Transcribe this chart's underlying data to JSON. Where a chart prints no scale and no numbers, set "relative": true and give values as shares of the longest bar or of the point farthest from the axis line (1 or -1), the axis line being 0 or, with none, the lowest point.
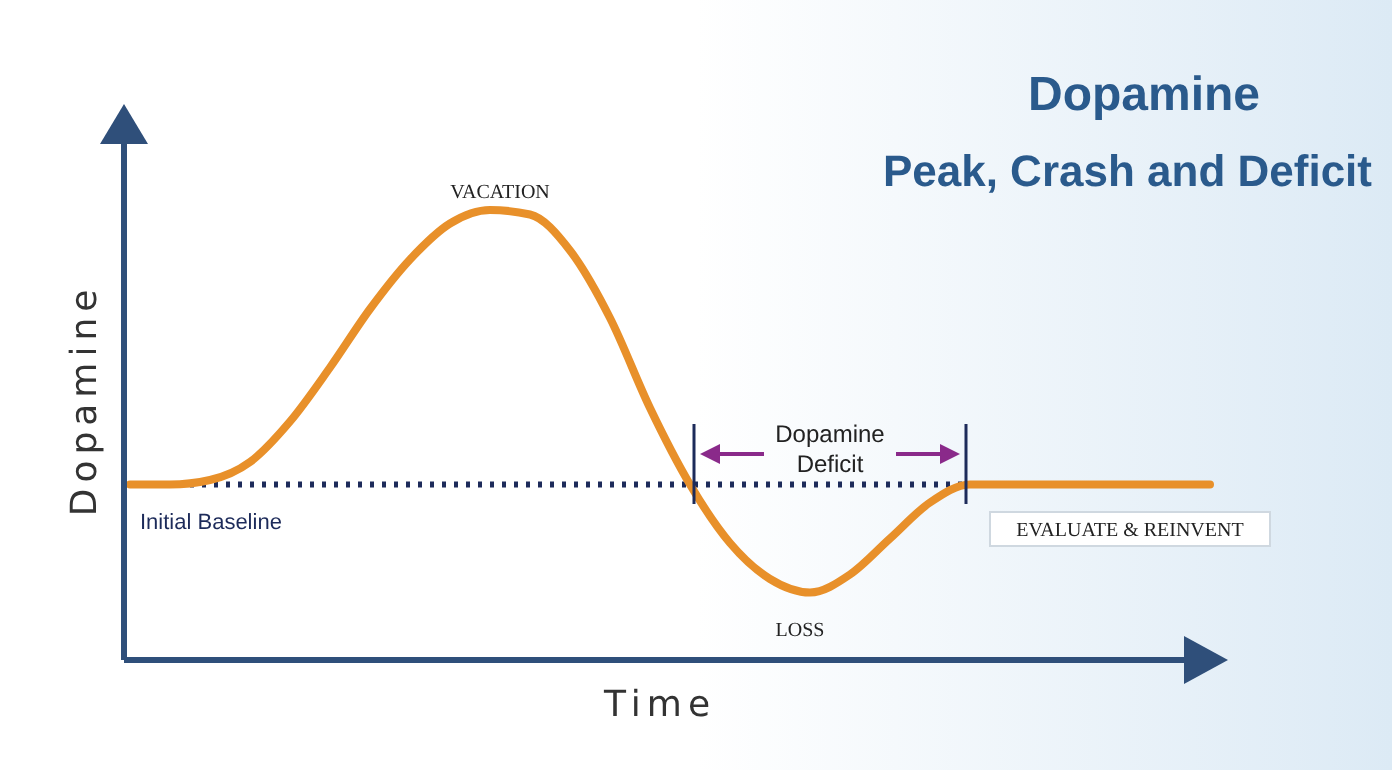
{
  "chart_data": {
    "type": "line",
    "relative": true,
    "title": "Dopamine",
    "subtitle": "Peak, Crash and Deficit",
    "xlabel": "Time",
    "ylabel": "Dopamine",
    "categories": [
      null,
      null,
      null,
      null,
      null,
      null,
      null,
      null,
      null,
      null,
      null,
      null,
      null,
      null,
      null,
      null,
      null,
      null,
      null,
      null,
      null,
      null,
      null,
      null,
      null,
      null,
      null,
      null
    ],
    "series": [
      {
        "color": "#e8902a",
        "values": [
          0.39,
          0.39,
          0.4,
          0.44,
          0.53,
          0.65,
          0.78,
          0.89,
          0.97,
          1,
          0.99,
          0.91,
          0.76,
          0.56,
          0.39,
          0.26,
          0.18,
          0.15,
          0.19,
          0.27,
          0.35,
          0.39,
          0.39,
          0.39,
          0.39,
          0.39,
          0.39,
          0.39
        ]
      }
    ],
    "ref_lines": [
      {
        "axis": "y",
        "value": 0.39,
        "label": "Initial Baseline",
        "color": "#1d2b5a",
        "line_style": "dotted"
      }
    ],
    "annotations": [
      "VACATION",
      "Dopamine Deficit",
      "LOSS",
      "EVALUATE & REINVENT"
    ],
    "grid": false,
    "marker": "none",
    "line_style": "solid"
  }
}
